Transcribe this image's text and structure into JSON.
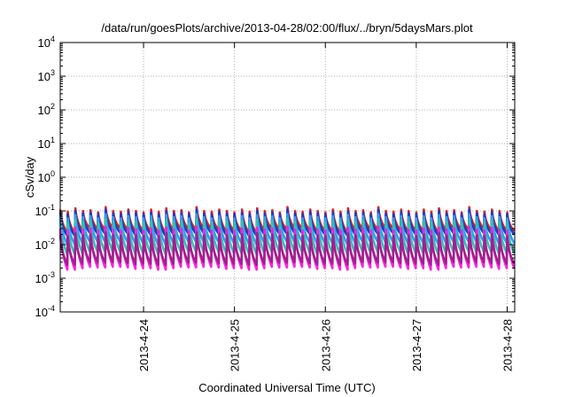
{
  "chart_data": {
    "type": "line",
    "title": "/data/run/goesPlots/archive/2013-04-28/02:00/flux/../bryn/5daysMars.plot",
    "xlabel": "Coordinated Universal Time (UTC)",
    "ylabel": "cSv/day",
    "yscale": "log",
    "ylim": [
      0.0001,
      10000
    ],
    "y_ticks": [
      {
        "base": "10",
        "exp": "-4",
        "value": 0.0001
      },
      {
        "base": "10",
        "exp": "-3",
        "value": 0.001
      },
      {
        "base": "10",
        "exp": "-2",
        "value": 0.01
      },
      {
        "base": "10",
        "exp": "-1",
        "value": 0.1
      },
      {
        "base": "10",
        "exp": "0",
        "value": 1
      },
      {
        "base": "10",
        "exp": "1",
        "value": 10
      },
      {
        "base": "10",
        "exp": "2",
        "value": 100
      },
      {
        "base": "10",
        "exp": "3",
        "value": 1000
      },
      {
        "base": "10",
        "exp": "4",
        "value": 10000
      }
    ],
    "xlim": [
      "2013-04-23T02:00",
      "2013-04-28T02:00"
    ],
    "x_ticks": [
      "2013-4-24",
      "2013-4-25",
      "2013-4-26",
      "2013-4-27",
      "2013-4-28"
    ],
    "grid": true,
    "cycle_hours": 2,
    "series": [
      {
        "color": "#e8201c",
        "peak": [
          0.11,
          0.095,
          0.12,
          0.1,
          0.105,
          0.09,
          0.13,
          0.1,
          0.095,
          0.11,
          0.1,
          0.09
        ],
        "trough": [
          0.03,
          0.025,
          0.028,
          0.022,
          0.03,
          0.026,
          0.024,
          0.028,
          0.025,
          0.03,
          0.022,
          0.027
        ]
      },
      {
        "color": "#1a3cc8",
        "peak": [
          0.09,
          0.08,
          0.1,
          0.085,
          0.09,
          0.08,
          0.11,
          0.085,
          0.08,
          0.095,
          0.085,
          0.08
        ],
        "trough": [
          0.022,
          0.02,
          0.021,
          0.018,
          0.022,
          0.02,
          0.019,
          0.021,
          0.02,
          0.022,
          0.018,
          0.021
        ]
      },
      {
        "color": "#2aa0f0",
        "peak": [
          0.07,
          0.06,
          0.075,
          0.065,
          0.07,
          0.06,
          0.08,
          0.065,
          0.06,
          0.07,
          0.065,
          0.06
        ],
        "trough": [
          0.012,
          0.011,
          0.012,
          0.01,
          0.012,
          0.011,
          0.0105,
          0.012,
          0.011,
          0.012,
          0.01,
          0.0115
        ]
      },
      {
        "color": "#2ec4b0",
        "peak": [
          0.05,
          0.045,
          0.055,
          0.048,
          0.05,
          0.044,
          0.058,
          0.048,
          0.045,
          0.052,
          0.048,
          0.045
        ],
        "trough": [
          0.006,
          0.0055,
          0.006,
          0.005,
          0.006,
          0.0055,
          0.0052,
          0.006,
          0.0055,
          0.006,
          0.005,
          0.0058
        ]
      },
      {
        "color": "#ff20e0",
        "peak": [
          0.03,
          0.026,
          0.032,
          0.028,
          0.03,
          0.026,
          0.034,
          0.028,
          0.026,
          0.031,
          0.028,
          0.026
        ],
        "trough": [
          0.0022,
          0.002,
          0.0021,
          0.0018,
          0.0022,
          0.002,
          0.0019,
          0.0021,
          0.002,
          0.0022,
          0.0018,
          0.0021
        ]
      },
      {
        "color": "#a0208c",
        "peak": [
          0.02,
          0.018,
          0.022,
          0.019,
          0.02,
          0.018,
          0.023,
          0.019,
          0.018,
          0.021,
          0.019,
          0.018
        ],
        "trough": [
          0.003,
          0.0027,
          0.0029,
          0.0025,
          0.003,
          0.0027,
          0.0026,
          0.0029,
          0.0027,
          0.003,
          0.0025,
          0.0028
        ]
      }
    ]
  }
}
